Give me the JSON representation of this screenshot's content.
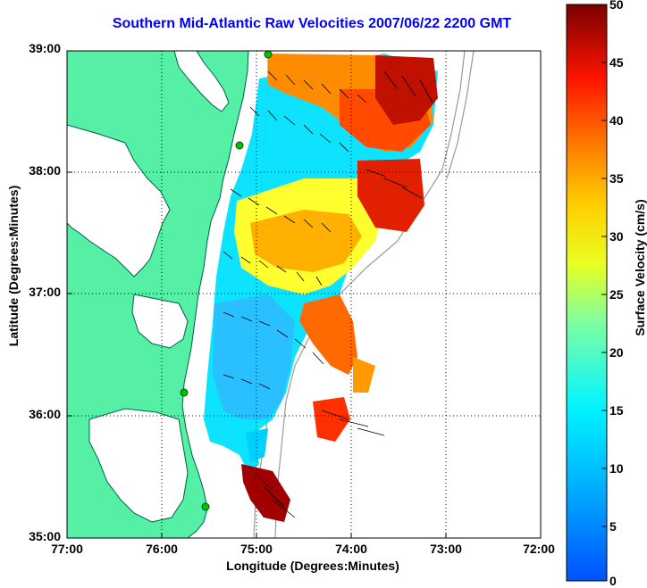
{
  "title": "Southern Mid-Atlantic Raw Velocities 2007/06/22 2200 GMT",
  "xlabel": "Longitude (Degrees:Minutes)",
  "ylabel": "Latitude (Degrees:Minutes)",
  "x_ticks": [
    "77:00",
    "76:00",
    "75:00",
    "74:00",
    "73:00",
    "72:00"
  ],
  "y_ticks": [
    "39:00",
    "38:00",
    "37:00",
    "36:00",
    "35:00"
  ],
  "colorbar": {
    "label": "Surface Velocity (cm/s)",
    "ticks": [
      "50",
      "45",
      "40",
      "35",
      "30",
      "25",
      "20",
      "15",
      "10",
      "5",
      "0"
    ],
    "range": [
      0,
      50
    ],
    "colormap": "jet"
  },
  "colors": {
    "land": "#55f0a5",
    "water_inland": "#ffffff",
    "title": "#0000ff",
    "station_marker": "#00c000",
    "grid": "#000000"
  },
  "map": {
    "lon_range": [
      -77,
      -72
    ],
    "lat_range": [
      35,
      39
    ],
    "grid": "dotted"
  },
  "stations": [
    {
      "lon": -75.08,
      "lat": 38.98
    },
    {
      "lon": -75.15,
      "lat": 38.22
    },
    {
      "lon": -75.65,
      "lat": 36.18
    },
    {
      "lon": -75.45,
      "lat": 35.25
    }
  ]
}
